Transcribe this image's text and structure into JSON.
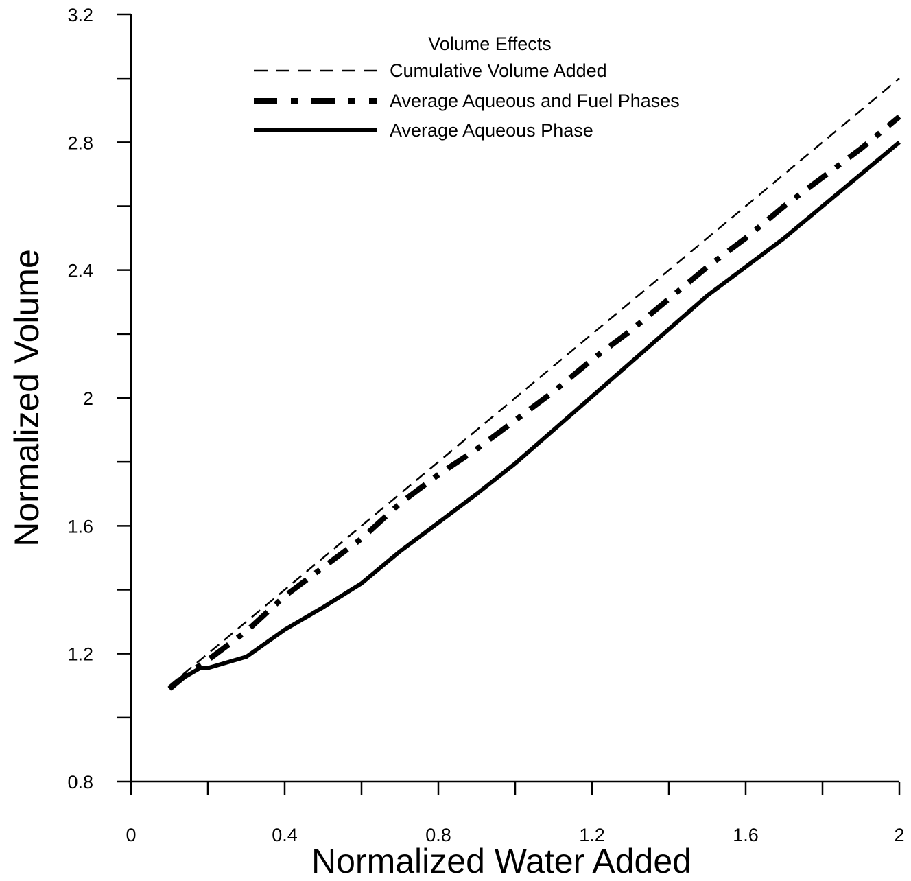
{
  "chart_data": {
    "type": "line",
    "xlabel": "Normalized Water Added",
    "ylabel": "Normalized Volume",
    "xlim": [
      0,
      2
    ],
    "ylim": [
      0.8,
      3.2
    ],
    "x_ticks": [
      "0",
      "0.4",
      "0.8",
      "1.2",
      "1.6",
      "2"
    ],
    "x_tick_values": [
      0,
      0.4,
      0.8,
      1.2,
      1.6,
      2
    ],
    "x_minor_ticks": [
      0.2,
      0.6,
      1.0,
      1.4,
      1.8
    ],
    "y_ticks": [
      "0.8",
      "1.2",
      "1.6",
      "2",
      "2.4",
      "2.8",
      "3.2"
    ],
    "y_tick_values": [
      0.8,
      1.2,
      1.6,
      2.0,
      2.4,
      2.8,
      3.2
    ],
    "y_minor_ticks": [
      1.0,
      1.4,
      1.8,
      2.2,
      2.6,
      3.0
    ],
    "grid": false,
    "legend": {
      "title": "Volume Effects",
      "position": "top-left"
    },
    "series": [
      {
        "name": "Cumulative Volume Added",
        "style": "dashed",
        "color": "#000000",
        "x": [
          0.1,
          0.2,
          0.3,
          0.4,
          0.5,
          0.6,
          0.7,
          0.8,
          0.9,
          1.0,
          1.1,
          1.2,
          1.3,
          1.4,
          1.5,
          1.6,
          1.7,
          1.8,
          1.9,
          2.0
        ],
        "y": [
          1.1,
          1.2,
          1.3,
          1.4,
          1.5,
          1.6,
          1.7,
          1.8,
          1.9,
          2.0,
          2.1,
          2.2,
          2.3,
          2.4,
          2.5,
          2.6,
          2.7,
          2.8,
          2.9,
          3.0
        ]
      },
      {
        "name": "Average Aqueous and Fuel Phases",
        "style": "dash-dot",
        "color": "#000000",
        "x": [
          0.1,
          0.15,
          0.2,
          0.3,
          0.4,
          0.5,
          0.6,
          0.7,
          0.8,
          0.9,
          1.0,
          1.1,
          1.2,
          1.3,
          1.4,
          1.5,
          1.6,
          1.7,
          1.8,
          1.9,
          2.0
        ],
        "y": [
          1.09,
          1.14,
          1.18,
          1.27,
          1.38,
          1.47,
          1.56,
          1.67,
          1.76,
          1.84,
          1.93,
          2.02,
          2.12,
          2.21,
          2.31,
          2.41,
          2.5,
          2.6,
          2.69,
          2.78,
          2.88
        ]
      },
      {
        "name": "Average Aqueous Phase",
        "style": "solid",
        "color": "#000000",
        "x": [
          0.1,
          0.13,
          0.18,
          0.2,
          0.3,
          0.4,
          0.5,
          0.6,
          0.7,
          0.8,
          0.9,
          1.0,
          1.1,
          1.2,
          1.3,
          1.4,
          1.5,
          1.6,
          1.7,
          1.8,
          1.9,
          2.0
        ],
        "y": [
          1.09,
          1.12,
          1.155,
          1.155,
          1.19,
          1.275,
          1.345,
          1.42,
          1.52,
          1.61,
          1.7,
          1.795,
          1.9,
          2.005,
          2.11,
          2.215,
          2.32,
          2.41,
          2.5,
          2.6,
          2.7,
          2.8
        ]
      }
    ]
  }
}
